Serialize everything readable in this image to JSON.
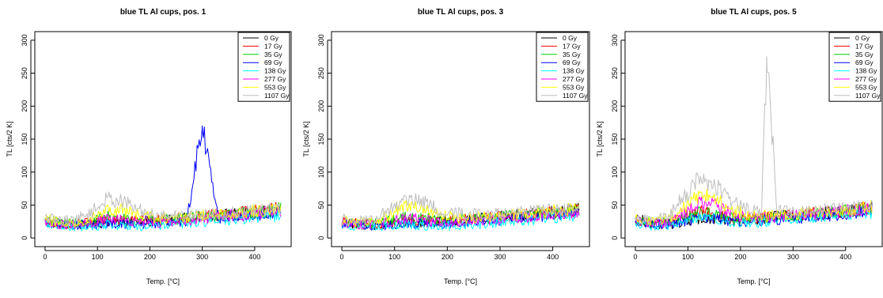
{
  "chart_data": [
    {
      "type": "line",
      "title": "blue TL Al cups, pos. 1",
      "xlabel": "Temp. [°C]",
      "ylabel": "TL [cts/2 K]",
      "xlim": [
        0,
        450
      ],
      "ylim": [
        0,
        300
      ],
      "xticks": [
        0,
        100,
        200,
        300,
        400
      ],
      "yticks": [
        0,
        50,
        100,
        150,
        200,
        250,
        300
      ],
      "x": [
        0,
        30,
        60,
        90,
        120,
        150,
        180,
        210,
        240,
        270,
        300,
        330,
        360,
        390,
        420,
        450
      ],
      "legend_position": "top-right",
      "series": [
        {
          "name": "0 Gy",
          "color": "#000000",
          "values": [
            25,
            22,
            20,
            22,
            25,
            24,
            26,
            25,
            28,
            30,
            32,
            34,
            36,
            38,
            40,
            42
          ]
        },
        {
          "name": "17 Gy",
          "color": "#ff0000",
          "values": [
            26,
            22,
            21,
            24,
            28,
            27,
            26,
            27,
            28,
            30,
            33,
            35,
            37,
            39,
            42,
            45
          ]
        },
        {
          "name": "35 Gy",
          "color": "#00cd00",
          "values": [
            27,
            23,
            22,
            26,
            32,
            30,
            27,
            27,
            28,
            30,
            32,
            34,
            36,
            38,
            41,
            44
          ]
        },
        {
          "name": "69 Gy",
          "color": "#0000ff",
          "values": [
            24,
            21,
            19,
            20,
            22,
            22,
            21,
            22,
            24,
            26,
            170,
            30,
            32,
            34,
            36,
            40
          ]
        },
        {
          "name": "138 Gy",
          "color": "#00ffff",
          "values": [
            22,
            18,
            16,
            18,
            20,
            19,
            18,
            19,
            20,
            22,
            24,
            26,
            28,
            30,
            32,
            35
          ]
        },
        {
          "name": "277 Gy",
          "color": "#ff00ff",
          "values": [
            25,
            21,
            20,
            24,
            30,
            28,
            25,
            24,
            25,
            27,
            30,
            32,
            34,
            36,
            38,
            42
          ]
        },
        {
          "name": "553 Gy",
          "color": "#ffff00",
          "values": [
            28,
            24,
            24,
            32,
            45,
            42,
            34,
            30,
            30,
            32,
            34,
            36,
            38,
            40,
            42,
            44
          ]
        },
        {
          "name": "1107 Gy",
          "color": "#bebebe",
          "values": [
            30,
            26,
            28,
            40,
            60,
            55,
            42,
            36,
            34,
            34,
            36,
            37,
            38,
            40,
            42,
            45
          ]
        }
      ]
    },
    {
      "type": "line",
      "title": "blue TL Al cups, pos. 3",
      "xlabel": "Temp. [°C]",
      "ylabel": "TL [cts/2 K]",
      "xlim": [
        0,
        450
      ],
      "ylim": [
        0,
        300
      ],
      "xticks": [
        0,
        100,
        200,
        300,
        400
      ],
      "yticks": [
        0,
        50,
        100,
        150,
        200,
        250,
        300
      ],
      "x": [
        0,
        30,
        60,
        90,
        120,
        150,
        180,
        210,
        240,
        270,
        300,
        330,
        360,
        390,
        420,
        450
      ],
      "legend_position": "top-right",
      "series": [
        {
          "name": "0 Gy",
          "color": "#000000",
          "values": [
            24,
            21,
            20,
            22,
            24,
            24,
            25,
            26,
            28,
            30,
            32,
            34,
            36,
            38,
            40,
            44
          ]
        },
        {
          "name": "17 Gy",
          "color": "#ff0000",
          "values": [
            25,
            22,
            21,
            24,
            28,
            27,
            26,
            27,
            28,
            30,
            32,
            34,
            36,
            38,
            40,
            43
          ]
        },
        {
          "name": "35 Gy",
          "color": "#00cd00",
          "values": [
            26,
            22,
            22,
            26,
            31,
            30,
            27,
            27,
            28,
            30,
            32,
            34,
            36,
            38,
            40,
            42
          ]
        },
        {
          "name": "69 Gy",
          "color": "#0000ff",
          "values": [
            22,
            20,
            19,
            20,
            22,
            22,
            21,
            22,
            24,
            26,
            28,
            30,
            32,
            34,
            36,
            38
          ]
        },
        {
          "name": "138 Gy",
          "color": "#00ffff",
          "values": [
            21,
            18,
            16,
            18,
            20,
            19,
            18,
            19,
            20,
            22,
            24,
            26,
            28,
            30,
            32,
            34
          ]
        },
        {
          "name": "277 Gy",
          "color": "#ff00ff",
          "values": [
            24,
            21,
            20,
            24,
            30,
            28,
            25,
            24,
            25,
            27,
            29,
            31,
            33,
            35,
            37,
            40
          ]
        },
        {
          "name": "553 Gy",
          "color": "#ffff00",
          "values": [
            27,
            24,
            24,
            34,
            48,
            44,
            35,
            31,
            30,
            32,
            34,
            36,
            38,
            40,
            42,
            44
          ]
        },
        {
          "name": "1107 Gy",
          "color": "#bebebe",
          "values": [
            30,
            26,
            28,
            42,
            60,
            56,
            44,
            38,
            36,
            36,
            37,
            38,
            40,
            42,
            44,
            48
          ]
        }
      ]
    },
    {
      "type": "line",
      "title": "blue TL Al cups, pos. 5",
      "xlabel": "Temp. [°C]",
      "ylabel": "TL [cts/2 K]",
      "xlim": [
        0,
        450
      ],
      "ylim": [
        0,
        300
      ],
      "xticks": [
        0,
        100,
        200,
        300,
        400
      ],
      "yticks": [
        0,
        50,
        100,
        150,
        200,
        250,
        300
      ],
      "x": [
        0,
        30,
        60,
        90,
        120,
        150,
        180,
        210,
        240,
        250,
        270,
        300,
        330,
        360,
        390,
        420,
        450
      ],
      "legend_position": "top-right",
      "series": [
        {
          "name": "0 Gy",
          "color": "#000000",
          "values": [
            30,
            22,
            21,
            24,
            28,
            28,
            27,
            28,
            30,
            31,
            32,
            34,
            36,
            38,
            40,
            42,
            46
          ]
        },
        {
          "name": "17 Gy",
          "color": "#ff0000",
          "values": [
            27,
            23,
            22,
            30,
            40,
            38,
            32,
            29,
            30,
            31,
            32,
            34,
            36,
            38,
            40,
            43,
            46
          ]
        },
        {
          "name": "35 Gy",
          "color": "#00cd00",
          "values": [
            28,
            24,
            23,
            30,
            38,
            36,
            31,
            29,
            30,
            31,
            32,
            34,
            36,
            38,
            40,
            43,
            45
          ]
        },
        {
          "name": "69 Gy",
          "color": "#0000ff",
          "values": [
            24,
            21,
            20,
            24,
            30,
            29,
            26,
            25,
            26,
            27,
            28,
            30,
            32,
            34,
            36,
            38,
            42
          ]
        },
        {
          "name": "138 Gy",
          "color": "#00ffff",
          "values": [
            23,
            19,
            18,
            24,
            32,
            30,
            25,
            23,
            24,
            25,
            26,
            28,
            30,
            32,
            34,
            36,
            38
          ]
        },
        {
          "name": "277 Gy",
          "color": "#ff00ff",
          "values": [
            27,
            23,
            24,
            36,
            52,
            50,
            38,
            32,
            31,
            32,
            32,
            34,
            36,
            38,
            40,
            42,
            45
          ]
        },
        {
          "name": "553 Gy",
          "color": "#ffff00",
          "values": [
            29,
            25,
            28,
            45,
            65,
            60,
            45,
            36,
            34,
            34,
            35,
            37,
            38,
            40,
            42,
            44,
            48
          ]
        },
        {
          "name": "1107 Gy",
          "color": "#bebebe",
          "values": [
            31,
            27,
            32,
            60,
            88,
            82,
            58,
            44,
            40,
            275,
            40,
            40,
            41,
            42,
            44,
            46,
            50
          ]
        }
      ]
    }
  ]
}
